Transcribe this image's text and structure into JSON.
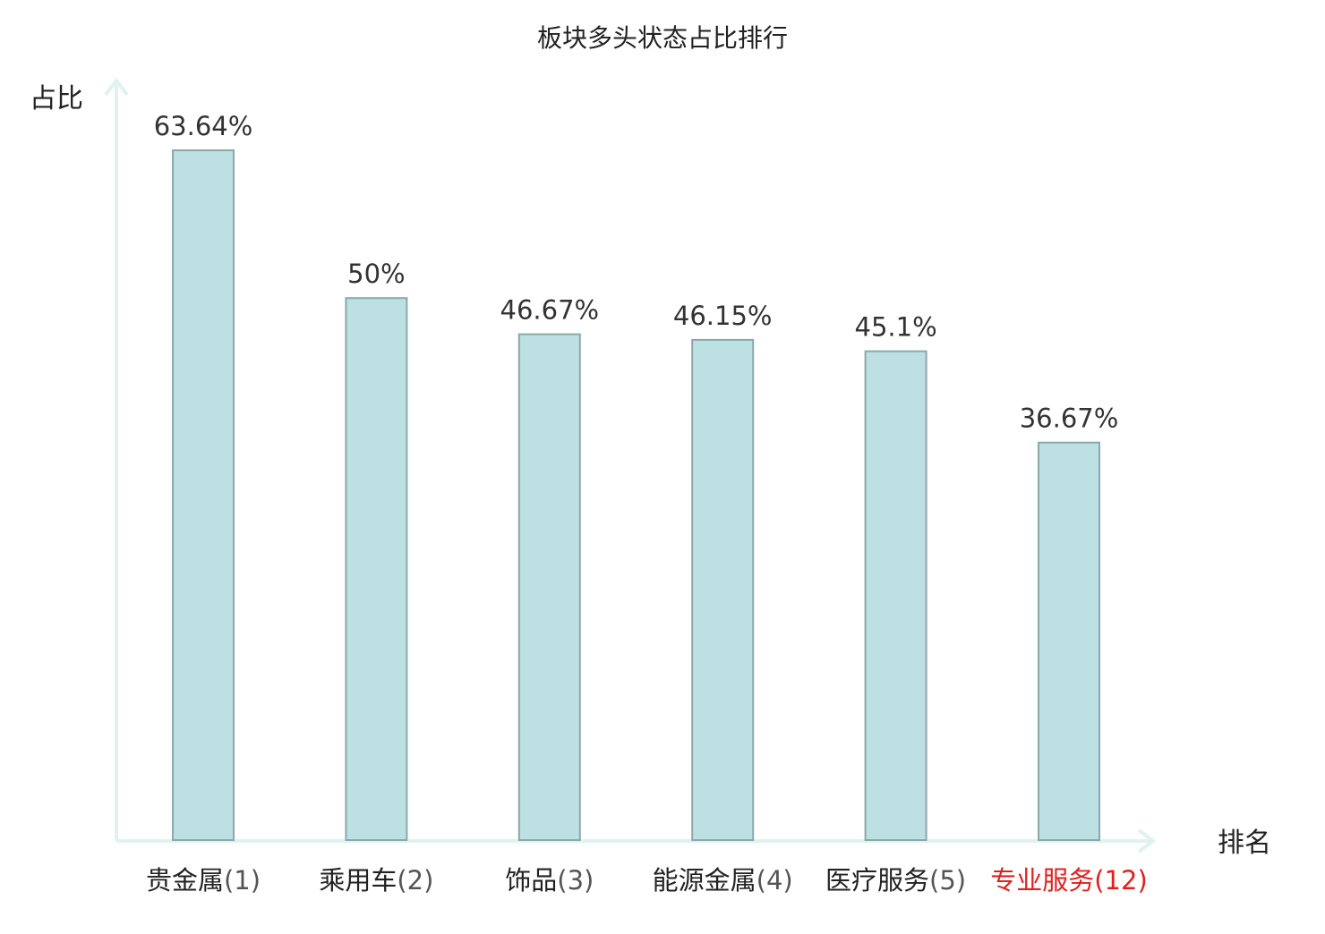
{
  "chart_data": {
    "type": "bar",
    "title": "板块多头状态占比排行",
    "ylabel": "占比",
    "xlabel": "排名",
    "ylim": [
      0,
      70
    ],
    "grid": false,
    "categories": [
      "贵金属",
      "乘用车",
      "饰品",
      "能源金属",
      "医疗服务",
      "专业服务"
    ],
    "ranks": [
      "(1)",
      "(2)",
      "(3)",
      "(4)",
      "(5)",
      "(12)"
    ],
    "values": [
      63.64,
      50,
      46.67,
      46.15,
      45.1,
      36.67
    ],
    "value_labels": [
      "63.64%",
      "50%",
      "46.67%",
      "46.15%",
      "45.1%",
      "36.67%"
    ],
    "highlight_index": 5
  },
  "colors": {
    "bar_fill": "#bde0e2",
    "bar_stroke": "#8aa9aa",
    "axis": "#e0f2ef",
    "text": "#222222",
    "value_label": "#333333",
    "highlight": "#e02020"
  }
}
